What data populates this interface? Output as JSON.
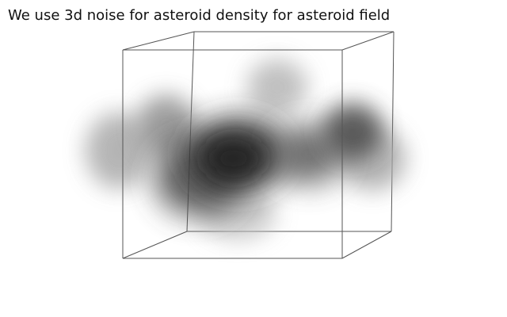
{
  "caption": "We use 3d noise for asteroid density for asteroid field",
  "colors": {
    "background": "#ffffff",
    "text": "#111111",
    "cube_edge": "#555555",
    "density_dark": "#2b2b2b",
    "density_light": "#9a9a9a"
  },
  "density_field": {
    "description_visible": "blurry dark blobs inside a wireframe cube",
    "representation": "grayscale soft blobs"
  }
}
